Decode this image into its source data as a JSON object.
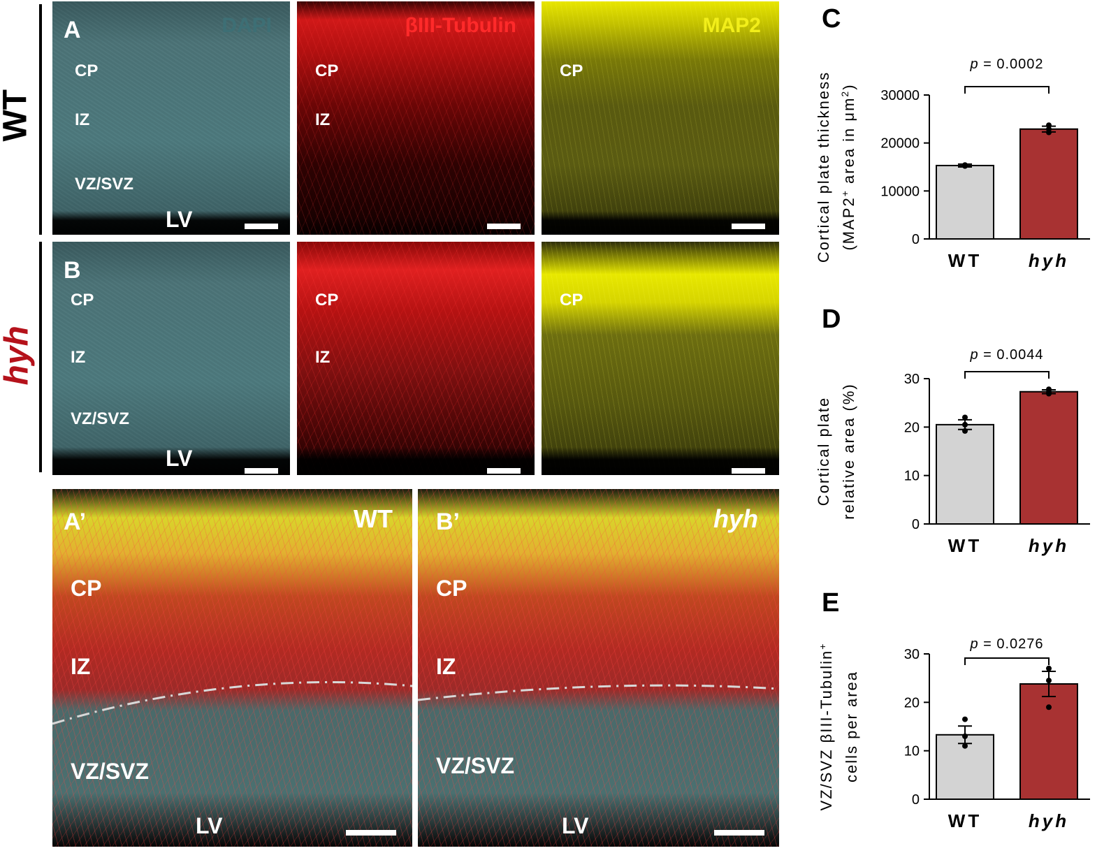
{
  "rows": {
    "wt_label": "WT",
    "hyh_label": "hyh"
  },
  "panels": {
    "A": {
      "letter": "A",
      "channel": "DAPI",
      "cp": "CP",
      "iz": "IZ",
      "vz": "VZ/SVZ",
      "lv": "LV"
    },
    "A_tub": {
      "channel": "βIII-Tubulin",
      "cp": "CP",
      "iz": "IZ"
    },
    "A_map": {
      "channel": "MAP2",
      "cp": "CP"
    },
    "B": {
      "letter": "B",
      "cp": "CP",
      "iz": "IZ",
      "vz": "VZ/SVZ",
      "lv": "LV"
    },
    "B_tub": {
      "cp": "CP",
      "iz": "IZ"
    },
    "B_map": {
      "cp": "CP"
    },
    "A_prime": {
      "letter": "A’",
      "genotype": "WT",
      "cp": "CP",
      "iz": "IZ",
      "vz": "VZ/SVZ",
      "lv": "LV"
    },
    "B_prime": {
      "letter": "B’",
      "genotype": "hyh",
      "cp": "CP",
      "iz": "IZ",
      "vz": "VZ/SVZ",
      "lv": "LV"
    }
  },
  "colors": {
    "wt_bar": "#d3d3d3",
    "hyh_bar": "#a83232",
    "hyh_text": "#b5121b"
  },
  "chart_data": [
    {
      "panel": "C",
      "type": "bar",
      "categories": [
        "WT",
        "hyh"
      ],
      "values": [
        15300,
        22900
      ],
      "errors": [
        300,
        600
      ],
      "points": [
        [
          15200,
          15300,
          15400
        ],
        [
          22200,
          22900,
          23700
        ]
      ],
      "ylabel_line1": "Cortical plate thickness",
      "ylabel_line2_pre": "(MAP2",
      "ylabel_line2_sup": "+",
      "ylabel_line2_mid": " area in μm",
      "ylabel_line2_sup2": "2",
      "ylabel_line2_post": ")",
      "yticks": [
        0,
        10000,
        20000,
        30000
      ],
      "ylim": [
        0,
        30000
      ],
      "p_italic": "p",
      "p_text": " = 0.0002"
    },
    {
      "panel": "D",
      "type": "bar",
      "categories": [
        "WT",
        "hyh"
      ],
      "values": [
        20.5,
        27.3
      ],
      "errors": [
        1.0,
        0.4
      ],
      "points": [
        [
          19.2,
          20.5,
          22.0
        ],
        [
          26.9,
          27.3,
          27.8
        ]
      ],
      "ylabel_line1": "Cortical plate",
      "ylabel_line2": "relative area (%)",
      "yticks": [
        0,
        10,
        20,
        30
      ],
      "ylim": [
        0,
        30
      ],
      "p_italic": "p",
      "p_text": " = 0.0044"
    },
    {
      "panel": "E",
      "type": "bar",
      "categories": [
        "WT",
        "hyh"
      ],
      "values": [
        13.3,
        23.8
      ],
      "errors": [
        1.8,
        2.6
      ],
      "points": [
        [
          11.0,
          13.0,
          16.5
        ],
        [
          19.0,
          24.5,
          27.0
        ]
      ],
      "ylabel_line1_pre": "VZ/SVZ βIII-Tubulin",
      "ylabel_line1_sup": "+",
      "ylabel_line2": "cells per area",
      "yticks": [
        0,
        10,
        20,
        30
      ],
      "ylim": [
        0,
        30
      ],
      "p_italic": "p",
      "p_text": " = 0.0276"
    }
  ]
}
